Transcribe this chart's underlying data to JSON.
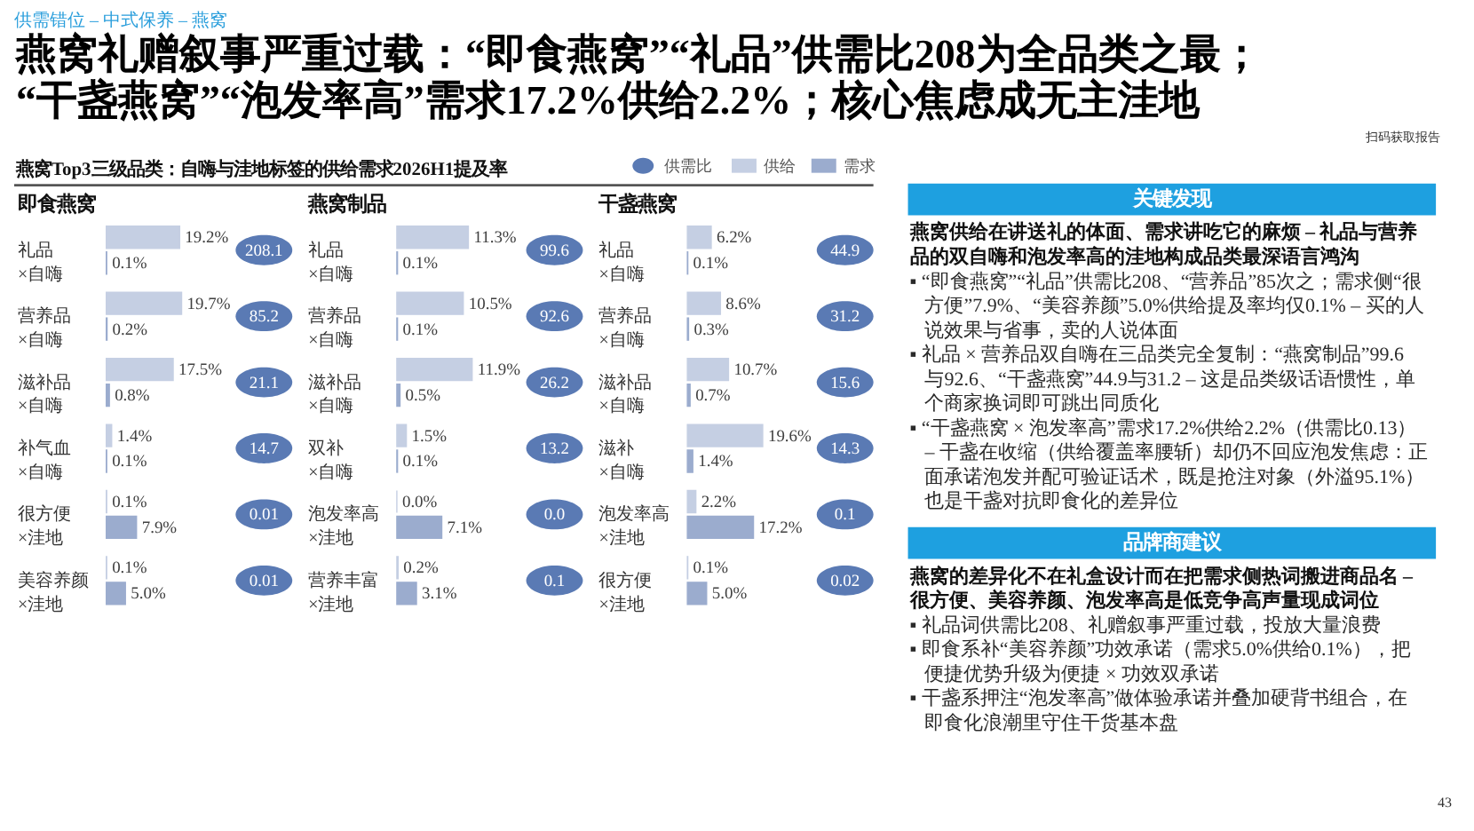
{
  "chart_data": [
    {
      "type": "other",
      "title": "燕窝礼赠叙事严重过载：“即食燕窝”“礼品”供需比208为全品类之最；\n“干盏燕窝”“泡发率高”需求17.2%供给2.2%；核心焦虑成无主洼地",
      "subtitle": "燕窝Top3三级品类：自嗨与洼地标签的供给需求2026H1提及率",
      "annotations": [
        "供需错位 – 中式保养 – 燕窝",
        "扫码获取报告"
      ]
    },
    {
      "type": "bar",
      "orientation": "horizontal",
      "title": "即食燕窝",
      "tick_labels": "y",
      "categories": [
        "礼品\n×自嗨",
        "营养品\n×自嗨",
        "滋补品\n×自嗨",
        "补气血\n×自嗨",
        "很方便\n×洼地",
        "美容养颜\n×洼地"
      ],
      "series": [
        {
          "color": "#c5cfe3",
          "values": [
            19.2,
            19.7,
            17.5,
            1.4,
            0.1,
            0.1
          ],
          "value_labels": [
            "19.2%",
            "19.7%",
            "17.5%",
            "1.4%",
            "0.1%",
            "0.1%"
          ]
        },
        {
          "color": "#9bacce",
          "values": [
            0.1,
            0.2,
            0.8,
            0.1,
            7.9,
            5.0
          ],
          "value_labels": [
            "0.1%",
            "0.2%",
            "0.8%",
            "0.1%",
            "7.9%",
            "5.0%"
          ]
        }
      ]
    },
    {
      "type": "other",
      "series": [
        {
          "color": "#5a7ab4",
          "values": [
            208.1,
            85.2,
            21.1,
            14.7,
            0.01,
            0.01
          ],
          "value_labels": [
            "208.1",
            "85.2",
            "21.1",
            "14.7",
            "0.01",
            "0.01"
          ]
        }
      ]
    },
    {
      "type": "bar",
      "orientation": "horizontal",
      "title": "燕窝制品",
      "tick_labels": "y",
      "categories": [
        "礼品\n×自嗨",
        "营养品\n×自嗨",
        "滋补品\n×自嗨",
        "双补\n×自嗨",
        "泡发率高\n×洼地",
        "营养丰富\n×洼地"
      ],
      "series": [
        {
          "color": "#c5cfe3",
          "values": [
            11.3,
            10.5,
            11.9,
            1.5,
            0.0,
            0.2
          ],
          "value_labels": [
            "11.3%",
            "10.5%",
            "11.9%",
            "1.5%",
            "0.0%",
            "0.2%"
          ]
        },
        {
          "color": "#9bacce",
          "values": [
            0.1,
            0.1,
            0.5,
            0.1,
            7.1,
            3.1
          ],
          "value_labels": [
            "0.1%",
            "0.1%",
            "0.5%",
            "0.1%",
            "7.1%",
            "3.1%"
          ]
        }
      ]
    },
    {
      "type": "other",
      "series": [
        {
          "color": "#5a7ab4",
          "values": [
            99.6,
            92.6,
            26.2,
            13.2,
            0.0,
            0.1
          ],
          "value_labels": [
            "99.6",
            "92.6",
            "26.2",
            "13.2",
            "0.0",
            "0.1"
          ]
        }
      ]
    },
    {
      "type": "bar",
      "orientation": "horizontal",
      "title": "干盏燕窝",
      "tick_labels": "y",
      "legend": "top right",
      "categories": [
        "礼品\n×自嗨",
        "营养品\n×自嗨",
        "滋补品\n×自嗨",
        "滋补\n×自嗨",
        "泡发率高\n×洼地",
        "很方便\n×洼地"
      ],
      "series": [
        {
          "name": "供给",
          "color": "#c5cfe3",
          "values": [
            6.2,
            8.6,
            10.7,
            19.6,
            2.2,
            0.1
          ],
          "value_labels": [
            "6.2%",
            "8.6%",
            "10.7%",
            "19.6%",
            "2.2%",
            "0.1%"
          ]
        },
        {
          "name": "需求",
          "color": "#9bacce",
          "values": [
            0.1,
            0.3,
            0.7,
            1.4,
            17.2,
            5.0
          ],
          "value_labels": [
            "0.1%",
            "0.3%",
            "0.7%",
            "1.4%",
            "17.2%",
            "5.0%"
          ]
        }
      ]
    },
    {
      "type": "other",
      "legend": "top right",
      "series": [
        {
          "name": "供需比",
          "color": "#5a7ab4",
          "values": [
            44.9,
            31.2,
            15.6,
            14.3,
            0.1,
            0.02
          ],
          "value_labels": [
            "44.9",
            "31.2",
            "15.6",
            "14.3",
            "0.1",
            "0.02"
          ]
        }
      ]
    },
    {
      "type": "other",
      "title": "关键发现",
      "annotations": [
        "燕窝供给在讲送礼的体面、需求讲吃它的麻烦 – 礼品与营养品的双自嗨和泡发率高的洼地构成品类最深语言鸿沟",
        "▪ “即食燕窝”“礼品”供需比208、“营养品”85次之；需求侧“很方便”7.9%、“美容养颜”5.0%供给提及率均仅0.1% – 买的人说效果与省事，卖的人说体面",
        "▪ 礼品 × 营养品双自嗨在三品类完全复制：“燕窝制品”99.6与92.6、“干盏燕窝”44.9与31.2 – 这是品类级话语惯性，单个商家换词即可跳出同质化",
        "▪ “干盏燕窝 × 泡发率高”需求17.2%供给2.2%（供需比0.13） – 干盏在收缩（供给覆盖率腰斩）却仍不回应泡发焦虑：正面承诺泡发并配可验证话术，既是抢注对象（外溢95.1%）也是干盏对抗即食化的差异位"
      ]
    },
    {
      "type": "other",
      "title": "品牌商建议",
      "annotations": [
        "燕窝的差异化不在礼盒设计而在把需求侧热词搬进商品名 – 很方便、美容养颜、泡发率高是低竞争高声量现成词位",
        "▪ 礼品词供需比208、礼赠叙事严重过载，投放大量浪费",
        "▪ 即食系补“美容养颜”功效承诺（需求5.0%供给0.1%），把便捷优势升级为便捷 × 功效双承诺",
        "▪ 干盏系押注“泡发率高”做体验承诺并叠加硬背书组合，在即食化浪潮里守住干货基本盘"
      ]
    },
    {
      "type": "other",
      "annotations": [
        "43"
      ]
    }
  ]
}
